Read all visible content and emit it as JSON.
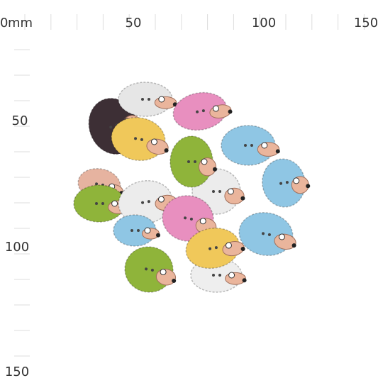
{
  "top_ruler": {
    "unit": "mm",
    "labels": [
      "0",
      "50",
      "100",
      "150"
    ]
  },
  "left_ruler": {
    "labels": [
      "50",
      "100",
      "150"
    ]
  }
}
